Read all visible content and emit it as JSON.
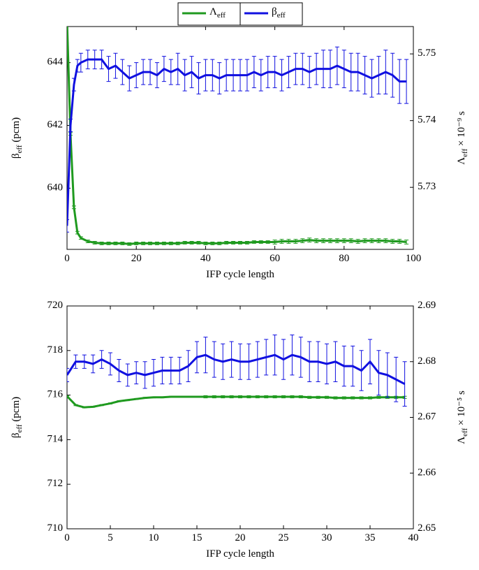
{
  "chart_data": [
    {
      "type": "line",
      "legend": "top",
      "xlabel": "IFP cycle length",
      "ylabel": "βeff (pcm)",
      "y2label": "Λeff × 10⁻⁹ s",
      "xlim": [
        0,
        100
      ],
      "xticks": [
        0,
        20,
        40,
        60,
        80,
        100
      ],
      "ylim": [
        638.05,
        645.15
      ],
      "yticks": [
        640,
        642,
        644
      ],
      "y2lim": [
        5.7207,
        5.7541
      ],
      "y2ticks": [
        5.73,
        5.74,
        5.75
      ],
      "x": [
        0,
        1,
        2,
        3,
        4,
        6,
        8,
        10,
        12,
        14,
        16,
        18,
        20,
        22,
        24,
        26,
        28,
        30,
        32,
        34,
        36,
        38,
        40,
        42,
        44,
        46,
        48,
        50,
        52,
        54,
        56,
        58,
        60,
        62,
        64,
        66,
        68,
        70,
        72,
        74,
        76,
        78,
        80,
        82,
        84,
        86,
        88,
        90,
        92,
        94,
        96,
        98
      ],
      "series": [
        {
          "name": "Λeff",
          "color": "#1f9a1f",
          "axis": "y2",
          "values": [
            5.755,
            5.738,
            5.727,
            5.7232,
            5.7224,
            5.7219,
            5.7217,
            5.7216,
            5.7216,
            5.7216,
            5.7216,
            5.7215,
            5.7216,
            5.7216,
            5.7216,
            5.7216,
            5.7216,
            5.7216,
            5.7216,
            5.7217,
            5.7217,
            5.7217,
            5.7216,
            5.7216,
            5.7216,
            5.7217,
            5.7217,
            5.7217,
            5.7217,
            5.7218,
            5.7218,
            5.7218,
            5.7218,
            5.7219,
            5.7219,
            5.7219,
            5.722,
            5.7221,
            5.722,
            5.722,
            5.722,
            5.722,
            5.722,
            5.722,
            5.7219,
            5.722,
            5.722,
            5.722,
            5.722,
            5.7219,
            5.7219,
            5.7218
          ],
          "errors": [
            0.0002,
            0.0002,
            0.0002,
            0.0002,
            0.0002,
            0.0002,
            0.0002,
            0.0002,
            0.0002,
            0.0002,
            0.0002,
            0.0002,
            0.0002,
            0.0002,
            0.0002,
            0.0002,
            0.0002,
            0.0002,
            0.0002,
            0.0002,
            0.0002,
            0.0002,
            0.0002,
            0.0002,
            0.0002,
            0.0002,
            0.0002,
            0.0002,
            0.0002,
            0.0002,
            0.0002,
            0.0002,
            0.0003,
            0.0003,
            0.0003,
            0.0003,
            0.0003,
            0.0003,
            0.0003,
            0.0003,
            0.0003,
            0.0003,
            0.0003,
            0.0003,
            0.0003,
            0.0003,
            0.0003,
            0.0003,
            0.0003,
            0.0003,
            0.0003,
            0.0003
          ]
        },
        {
          "name": "βeff",
          "color": "#1010e0",
          "axis": "y",
          "values": [
            638.8,
            642.0,
            643.3,
            643.9,
            644.0,
            644.1,
            644.1,
            644.1,
            643.8,
            643.9,
            643.7,
            643.5,
            643.6,
            643.7,
            643.7,
            643.6,
            643.8,
            643.7,
            643.8,
            643.6,
            643.7,
            643.5,
            643.6,
            643.6,
            643.5,
            643.6,
            643.6,
            643.6,
            643.6,
            643.7,
            643.6,
            643.7,
            643.7,
            643.6,
            643.7,
            643.8,
            643.8,
            643.7,
            643.8,
            643.8,
            643.8,
            643.9,
            643.8,
            643.7,
            643.7,
            643.6,
            643.5,
            643.6,
            643.7,
            643.6,
            643.4,
            643.4
          ],
          "errors": [
            0.2,
            0.2,
            0.2,
            0.2,
            0.3,
            0.3,
            0.3,
            0.3,
            0.4,
            0.4,
            0.4,
            0.4,
            0.4,
            0.4,
            0.4,
            0.4,
            0.4,
            0.4,
            0.5,
            0.5,
            0.5,
            0.5,
            0.5,
            0.5,
            0.5,
            0.5,
            0.5,
            0.5,
            0.5,
            0.5,
            0.5,
            0.5,
            0.5,
            0.5,
            0.5,
            0.5,
            0.5,
            0.5,
            0.5,
            0.6,
            0.6,
            0.6,
            0.6,
            0.6,
            0.6,
            0.6,
            0.6,
            0.6,
            0.7,
            0.7,
            0.7,
            0.7
          ]
        }
      ]
    },
    {
      "type": "line",
      "xlabel": "IFP cycle length",
      "ylabel": "βeff (pcm)",
      "y2label": "Λeff × 10⁻⁵ s",
      "xlim": [
        0,
        40
      ],
      "xticks": [
        0,
        5,
        10,
        15,
        20,
        25,
        30,
        35,
        40
      ],
      "ylim": [
        710,
        720
      ],
      "yticks": [
        710,
        712,
        714,
        716,
        718,
        720
      ],
      "y2lim": [
        2.65,
        2.69
      ],
      "y2ticks": [
        2.65,
        2.66,
        2.67,
        2.68,
        2.69
      ],
      "x": [
        0,
        1,
        2,
        3,
        4,
        5,
        6,
        7,
        8,
        9,
        10,
        11,
        12,
        13,
        14,
        15,
        16,
        17,
        18,
        19,
        20,
        21,
        22,
        23,
        24,
        25,
        26,
        27,
        28,
        29,
        30,
        31,
        32,
        33,
        34,
        35,
        36,
        37,
        38,
        39
      ],
      "series": [
        {
          "color": "#1f9a1f",
          "axis": "y2",
          "values": [
            2.6738,
            2.6722,
            2.6718,
            2.6719,
            2.6722,
            2.6725,
            2.6729,
            2.6731,
            2.6733,
            2.6735,
            2.6736,
            2.6736,
            2.6737,
            2.6737,
            2.6737,
            2.6737,
            2.6737,
            2.6737,
            2.6737,
            2.6737,
            2.6737,
            2.6737,
            2.6737,
            2.6737,
            2.6737,
            2.6737,
            2.6737,
            2.6737,
            2.6736,
            2.6736,
            2.6736,
            2.6735,
            2.6735,
            2.6735,
            2.6735,
            2.6735,
            2.6736,
            2.6736,
            2.6736,
            2.6736
          ],
          "errors": [
            0.0001,
            0.0001,
            0.0001,
            0.0001,
            0.0001,
            0.0001,
            0.0001,
            0.0001,
            0.0001,
            0.0001,
            0.0001,
            0.0001,
            0.0001,
            0.0001,
            0.0001,
            0.0001,
            0.0002,
            0.0002,
            0.0002,
            0.0002,
            0.0002,
            0.0002,
            0.0002,
            0.0002,
            0.0002,
            0.0002,
            0.0002,
            0.0002,
            0.0002,
            0.0002,
            0.0002,
            0.0002,
            0.0002,
            0.0002,
            0.0002,
            0.0002,
            0.0002,
            0.0002,
            0.0002,
            0.0002
          ]
        },
        {
          "color": "#1010e0",
          "axis": "y",
          "values": [
            716.9,
            717.5,
            717.5,
            717.4,
            717.6,
            717.4,
            717.1,
            716.9,
            717.0,
            716.9,
            717.0,
            717.1,
            717.1,
            717.1,
            717.3,
            717.7,
            717.8,
            717.6,
            717.5,
            717.6,
            717.5,
            717.5,
            717.6,
            717.7,
            717.8,
            717.6,
            717.8,
            717.7,
            717.5,
            717.5,
            717.4,
            717.5,
            717.3,
            717.3,
            717.1,
            717.5,
            717.0,
            716.9,
            716.7,
            716.5
          ],
          "errors": [
            0.3,
            0.3,
            0.3,
            0.4,
            0.4,
            0.5,
            0.5,
            0.5,
            0.5,
            0.6,
            0.6,
            0.6,
            0.6,
            0.6,
            0.7,
            0.7,
            0.8,
            0.8,
            0.8,
            0.8,
            0.8,
            0.8,
            0.8,
            0.8,
            0.9,
            0.9,
            0.9,
            0.9,
            0.9,
            0.9,
            0.9,
            0.9,
            0.9,
            0.9,
            0.9,
            1.0,
            1.0,
            1.0,
            1.0,
            1.0
          ]
        }
      ]
    }
  ]
}
